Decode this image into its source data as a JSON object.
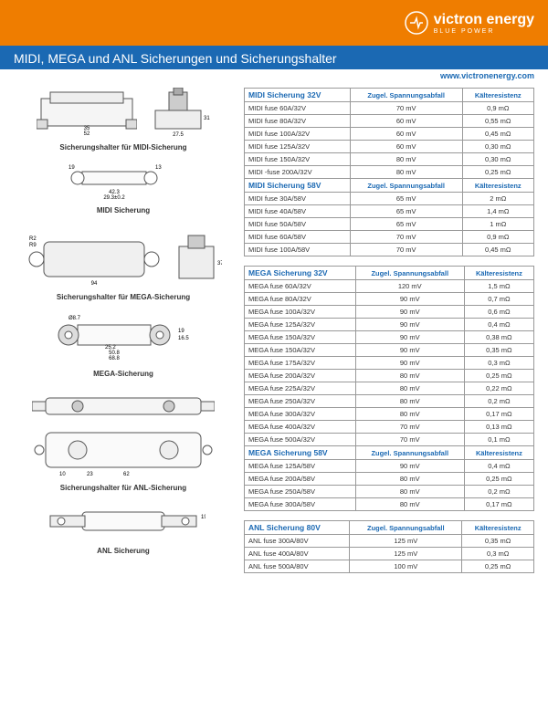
{
  "brand": {
    "name": "victron energy",
    "tagline": "BLUE POWER"
  },
  "title": "MIDI, MEGA und ANL Sicherungen und Sicherungshalter",
  "url": "www.victronenergy.com",
  "colors": {
    "orange": "#ef7d00",
    "blue": "#1b69b3",
    "border": "#999999",
    "text": "#333333",
    "bg": "#ffffff"
  },
  "captions": {
    "midi_holder": "Sicherungshalter für MIDI-Sicherung",
    "midi_fuse": "MIDI Sicherung",
    "mega_holder": "Sicherungshalter für MEGA-Sicherung",
    "mega_fuse": "MEGA-Sicherung",
    "anl_holder": "Sicherungshalter für ANL-Sicherung",
    "anl_fuse": "ANL Sicherung"
  },
  "col_labels": {
    "drop": "Zugel. Spannungsabfall",
    "cold": "Kälteresistenz"
  },
  "tables": [
    {
      "groups": [
        {
          "title": "MIDI Sicherung 32V",
          "rows": [
            {
              "n": "MIDI fuse 60A/32V",
              "d": "70 mV",
              "c": "0,9 mΩ"
            },
            {
              "n": "MIDI fuse 80A/32V",
              "d": "60 mV",
              "c": "0,55 mΩ"
            },
            {
              "n": "MIDI fuse 100A/32V",
              "d": "60 mV",
              "c": "0,45 mΩ"
            },
            {
              "n": "MIDI fuse 125A/32V",
              "d": "60 mV",
              "c": "0,30 mΩ"
            },
            {
              "n": "MIDI fuse 150A/32V",
              "d": "80 mV",
              "c": "0,30 mΩ"
            },
            {
              "n": "MIDI -fuse 200A/32V",
              "d": "80 mV",
              "c": "0,25 mΩ"
            }
          ]
        },
        {
          "title": "MIDI Sicherung 58V",
          "rows": [
            {
              "n": "MIDI fuse 30A/58V",
              "d": "65 mV",
              "c": "2 mΩ"
            },
            {
              "n": "MIDI fuse 40A/58V",
              "d": "65 mV",
              "c": "1,4 mΩ"
            },
            {
              "n": "MIDI fuse 50A/58V",
              "d": "65 mV",
              "c": "1 mΩ"
            },
            {
              "n": "MIDI fuse 60A/58V",
              "d": "70 mV",
              "c": "0,9 mΩ"
            },
            {
              "n": "MIDI fuse 100A/58V",
              "d": "70 mV",
              "c": "0,45 mΩ"
            }
          ]
        }
      ]
    },
    {
      "groups": [
        {
          "title": "MEGA Sicherung 32V",
          "rows": [
            {
              "n": "MEGA fuse 60A/32V",
              "d": "120 mV",
              "c": "1,5 mΩ"
            },
            {
              "n": "MEGA fuse 80A/32V",
              "d": "90 mV",
              "c": "0,7 mΩ"
            },
            {
              "n": "MEGA fuse 100A/32V",
              "d": "90 mV",
              "c": "0,6 mΩ"
            },
            {
              "n": "MEGA fuse 125A/32V",
              "d": "90 mV",
              "c": "0,4 mΩ"
            },
            {
              "n": "MEGA fuse 150A/32V",
              "d": "90 mV",
              "c": "0,38 mΩ"
            },
            {
              "n": "MEGA fuse 150A/32V",
              "d": "90 mV",
              "c": "0,35 mΩ"
            },
            {
              "n": "MEGA fuse 175A/32V",
              "d": "90 mV",
              "c": "0,3 mΩ"
            },
            {
              "n": "MEGA fuse 200A/32V",
              "d": "80 mV",
              "c": "0,25 mΩ"
            },
            {
              "n": "MEGA fuse 225A/32V",
              "d": "80 mV",
              "c": "0,22 mΩ"
            },
            {
              "n": "MEGA fuse 250A/32V",
              "d": "80 mV",
              "c": "0,2 mΩ"
            },
            {
              "n": "MEGA fuse 300A/32V",
              "d": "80 mV",
              "c": "0,17 mΩ"
            },
            {
              "n": "MEGA fuse 400A/32V",
              "d": "70 mV",
              "c": "0,13 mΩ"
            },
            {
              "n": "MEGA fuse 500A/32V",
              "d": "70 mV",
              "c": "0,1 mΩ"
            }
          ]
        },
        {
          "title": "MEGA Sicherung 58V",
          "rows": [
            {
              "n": "MEGA fuse 125A/58V",
              "d": "90 mV",
              "c": "0,4 mΩ"
            },
            {
              "n": "MEGA fuse 200A/58V",
              "d": "80 mV",
              "c": "0,25 mΩ"
            },
            {
              "n": "MEGA fuse 250A/58V",
              "d": "80 mV",
              "c": "0,2 mΩ"
            },
            {
              "n": "MEGA fuse 300A/58V",
              "d": "80 mV",
              "c": "0,17 mΩ"
            }
          ]
        }
      ]
    },
    {
      "groups": [
        {
          "title": "ANL Sicherung 80V",
          "rows": [
            {
              "n": "ANL fuse 300A/80V",
              "d": "125 mV",
              "c": "0,35 mΩ"
            },
            {
              "n": "ANL fuse 400A/80V",
              "d": "125 mV",
              "c": "0,3 mΩ"
            },
            {
              "n": "ANL fuse 500A/80V",
              "d": "100 mV",
              "c": "0,25 mΩ"
            }
          ]
        }
      ]
    }
  ]
}
